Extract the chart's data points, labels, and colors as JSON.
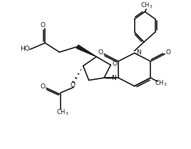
{
  "bg_color": "#ffffff",
  "line_color": "#1a1a1a",
  "line_width": 1.2,
  "font_size": 6.5,
  "xlim": [
    0,
    10
  ],
  "ylim": [
    0,
    8
  ]
}
